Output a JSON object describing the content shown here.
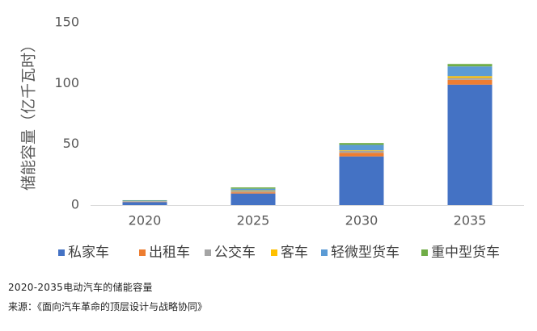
{
  "chart_data": {
    "type": "bar",
    "stacked": true,
    "categories": [
      "2020",
      "2025",
      "2030",
      "2035"
    ],
    "series": [
      {
        "name": "私家车",
        "color": "#4472C4",
        "values": [
          2.5,
          9.5,
          40,
          99
        ]
      },
      {
        "name": "出租车",
        "color": "#ED7D31",
        "values": [
          0.3,
          1.0,
          3.0,
          4.0
        ]
      },
      {
        "name": "公交车",
        "color": "#A5A5A5",
        "values": [
          0.3,
          1.0,
          1.5,
          1.5
        ]
      },
      {
        "name": "客车",
        "color": "#FFC000",
        "values": [
          0.1,
          0.5,
          0.5,
          1.5
        ]
      },
      {
        "name": "轻微型货车",
        "color": "#5B9BD5",
        "values": [
          0.5,
          1.5,
          4.5,
          8.0
        ]
      },
      {
        "name": "重中型货车",
        "color": "#70AD47",
        "values": [
          0.3,
          1.0,
          1.5,
          2.0
        ]
      }
    ],
    "title": "",
    "xlabel": "",
    "ylabel": "储能容量（亿千瓦时）",
    "ylim": [
      0,
      150
    ],
    "yticks": [
      0,
      50,
      100,
      150
    ],
    "grid": false,
    "legend": "bottom"
  },
  "caption": "2020-2035电动汽车的储能容量",
  "source": "来源：《面向汽车革命的顶层设计与战略协同》"
}
